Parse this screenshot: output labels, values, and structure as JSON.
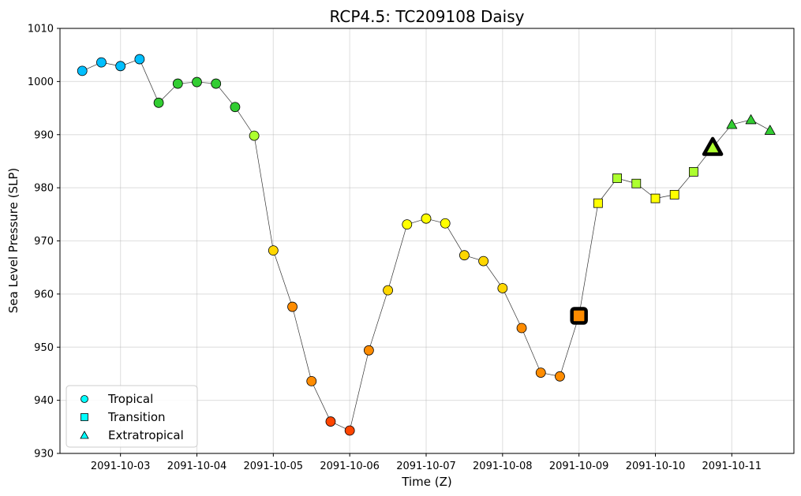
{
  "chart_data": {
    "type": "scatter",
    "title": "RCP4.5: TC209108 Daisy",
    "xlabel": "Time (Z)",
    "ylabel": "Sea Level Pressure (SLP)",
    "x_tick_labels": [
      "2091-10-03",
      "2091-10-04",
      "2091-10-05",
      "2091-10-06",
      "2091-10-07",
      "2091-10-08",
      "2091-10-09",
      "2091-10-10",
      "2091-10-11"
    ],
    "xlim": [
      "2091-10-02T05:00",
      "2091-10-11T19:30"
    ],
    "ylim": [
      930,
      1010
    ],
    "y_ticks": [
      930,
      940,
      950,
      960,
      970,
      980,
      990,
      1000,
      1010
    ],
    "grid": true,
    "legend": {
      "placement": "lower-left",
      "entries": [
        {
          "label": "Tropical",
          "marker": "circle"
        },
        {
          "label": "Transition",
          "marker": "square"
        },
        {
          "label": "Extratropical",
          "marker": "triangle"
        }
      ]
    },
    "colors": {
      "deep_sky_blue": "#00bfff",
      "green": "#32cd32",
      "green_yellow": "#adff2f",
      "yellow": "#ffff00",
      "gold": "#ffd700",
      "orange": "#ff8c00",
      "red_orange": "#ff4500",
      "legend_cyan": "#00ffff",
      "line": "#333333"
    },
    "points": [
      {
        "time": "2091-10-02T12:00",
        "slp": 1002.0,
        "phase": "tropical",
        "color": "#00bfff"
      },
      {
        "time": "2091-10-02T18:00",
        "slp": 1003.6,
        "phase": "tropical",
        "color": "#00bfff"
      },
      {
        "time": "2091-10-03T00:00",
        "slp": 1002.9,
        "phase": "tropical",
        "color": "#00bfff"
      },
      {
        "time": "2091-10-03T06:00",
        "slp": 1004.2,
        "phase": "tropical",
        "color": "#00bfff"
      },
      {
        "time": "2091-10-03T12:00",
        "slp": 996.0,
        "phase": "tropical",
        "color": "#32cd32"
      },
      {
        "time": "2091-10-03T18:00",
        "slp": 999.6,
        "phase": "tropical",
        "color": "#32cd32"
      },
      {
        "time": "2091-10-04T00:00",
        "slp": 999.9,
        "phase": "tropical",
        "color": "#32cd32"
      },
      {
        "time": "2091-10-04T06:00",
        "slp": 999.6,
        "phase": "tropical",
        "color": "#32cd32"
      },
      {
        "time": "2091-10-04T12:00",
        "slp": 995.2,
        "phase": "tropical",
        "color": "#32cd32"
      },
      {
        "time": "2091-10-04T18:00",
        "slp": 989.8,
        "phase": "tropical",
        "color": "#adff2f"
      },
      {
        "time": "2091-10-05T00:00",
        "slp": 968.2,
        "phase": "tropical",
        "color": "#ffd700"
      },
      {
        "time": "2091-10-05T06:00",
        "slp": 957.6,
        "phase": "tropical",
        "color": "#ff8c00"
      },
      {
        "time": "2091-10-05T12:00",
        "slp": 943.6,
        "phase": "tropical",
        "color": "#ff8c00"
      },
      {
        "time": "2091-10-05T18:00",
        "slp": 936.0,
        "phase": "tropical",
        "color": "#ff4500"
      },
      {
        "time": "2091-10-06T00:00",
        "slp": 934.3,
        "phase": "tropical",
        "color": "#ff4500"
      },
      {
        "time": "2091-10-06T06:00",
        "slp": 949.4,
        "phase": "tropical",
        "color": "#ff8c00"
      },
      {
        "time": "2091-10-06T12:00",
        "slp": 960.7,
        "phase": "tropical",
        "color": "#ffd700"
      },
      {
        "time": "2091-10-06T18:00",
        "slp": 973.1,
        "phase": "tropical",
        "color": "#ffff00"
      },
      {
        "time": "2091-10-07T00:00",
        "slp": 974.2,
        "phase": "tropical",
        "color": "#ffff00"
      },
      {
        "time": "2091-10-07T06:00",
        "slp": 973.3,
        "phase": "tropical",
        "color": "#ffff00"
      },
      {
        "time": "2091-10-07T12:00",
        "slp": 967.3,
        "phase": "tropical",
        "color": "#ffd700"
      },
      {
        "time": "2091-10-07T18:00",
        "slp": 966.2,
        "phase": "tropical",
        "color": "#ffd700"
      },
      {
        "time": "2091-10-08T00:00",
        "slp": 961.1,
        "phase": "tropical",
        "color": "#ffd700"
      },
      {
        "time": "2091-10-08T06:00",
        "slp": 953.6,
        "phase": "tropical",
        "color": "#ff8c00"
      },
      {
        "time": "2091-10-08T12:00",
        "slp": 945.2,
        "phase": "tropical",
        "color": "#ff8c00"
      },
      {
        "time": "2091-10-08T18:00",
        "slp": 944.5,
        "phase": "tropical",
        "color": "#ff8c00"
      },
      {
        "time": "2091-10-09T00:00",
        "slp": 955.9,
        "phase": "transition",
        "color": "#ff8c00",
        "highlight": true
      },
      {
        "time": "2091-10-09T06:00",
        "slp": 977.1,
        "phase": "transition",
        "color": "#ffff00"
      },
      {
        "time": "2091-10-09T12:00",
        "slp": 981.8,
        "phase": "transition",
        "color": "#adff2f"
      },
      {
        "time": "2091-10-09T18:00",
        "slp": 980.8,
        "phase": "transition",
        "color": "#adff2f"
      },
      {
        "time": "2091-10-10T00:00",
        "slp": 978.0,
        "phase": "transition",
        "color": "#ffff00"
      },
      {
        "time": "2091-10-10T06:00",
        "slp": 978.7,
        "phase": "transition",
        "color": "#ffff00"
      },
      {
        "time": "2091-10-10T12:00",
        "slp": 983.0,
        "phase": "transition",
        "color": "#adff2f"
      },
      {
        "time": "2091-10-10T18:00",
        "slp": 987.6,
        "phase": "extratropical",
        "color": "#adff2f",
        "highlight": true
      },
      {
        "time": "2091-10-11T00:00",
        "slp": 991.9,
        "phase": "extratropical",
        "color": "#32cd32"
      },
      {
        "time": "2091-10-11T06:00",
        "slp": 992.8,
        "phase": "extratropical",
        "color": "#32cd32"
      },
      {
        "time": "2091-10-11T12:00",
        "slp": 990.8,
        "phase": "extratropical",
        "color": "#32cd32"
      }
    ]
  }
}
